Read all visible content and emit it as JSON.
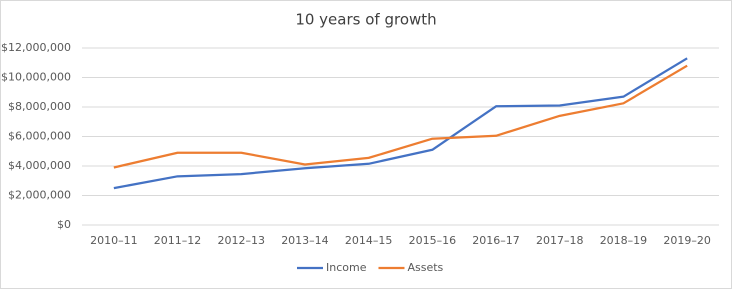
{
  "chart_data": {
    "type": "line",
    "title": "10 years of growth",
    "categories": [
      "2010–11",
      "2011–12",
      "2012–13",
      "2013–14",
      "2014–15",
      "2015–16",
      "2016–17",
      "2017–18",
      "2018–19",
      "2019–20"
    ],
    "series": [
      {
        "name": "Income",
        "color": "#4472c4",
        "values": [
          2500000,
          3300000,
          3450000,
          3850000,
          4150000,
          5100000,
          8050000,
          8100000,
          8700000,
          11300000
        ]
      },
      {
        "name": "Assets",
        "color": "#ed7d31",
        "values": [
          3900000,
          4900000,
          4900000,
          4100000,
          4550000,
          5850000,
          6050000,
          7400000,
          8250000,
          10800000
        ]
      }
    ],
    "ylim": [
      0,
      12000000
    ],
    "yticks": [
      {
        "value": 0,
        "label": "$0"
      },
      {
        "value": 2000000,
        "label": "$2,000,000"
      },
      {
        "value": 4000000,
        "label": "$4,000,000"
      },
      {
        "value": 6000000,
        "label": "$6,000,000"
      },
      {
        "value": 8000000,
        "label": "$8,000,000"
      },
      {
        "value": 10000000,
        "label": "$10,000,000"
      },
      {
        "value": 12000000,
        "label": "$12,000,000"
      }
    ],
    "grid": true,
    "legend": "bottom"
  }
}
